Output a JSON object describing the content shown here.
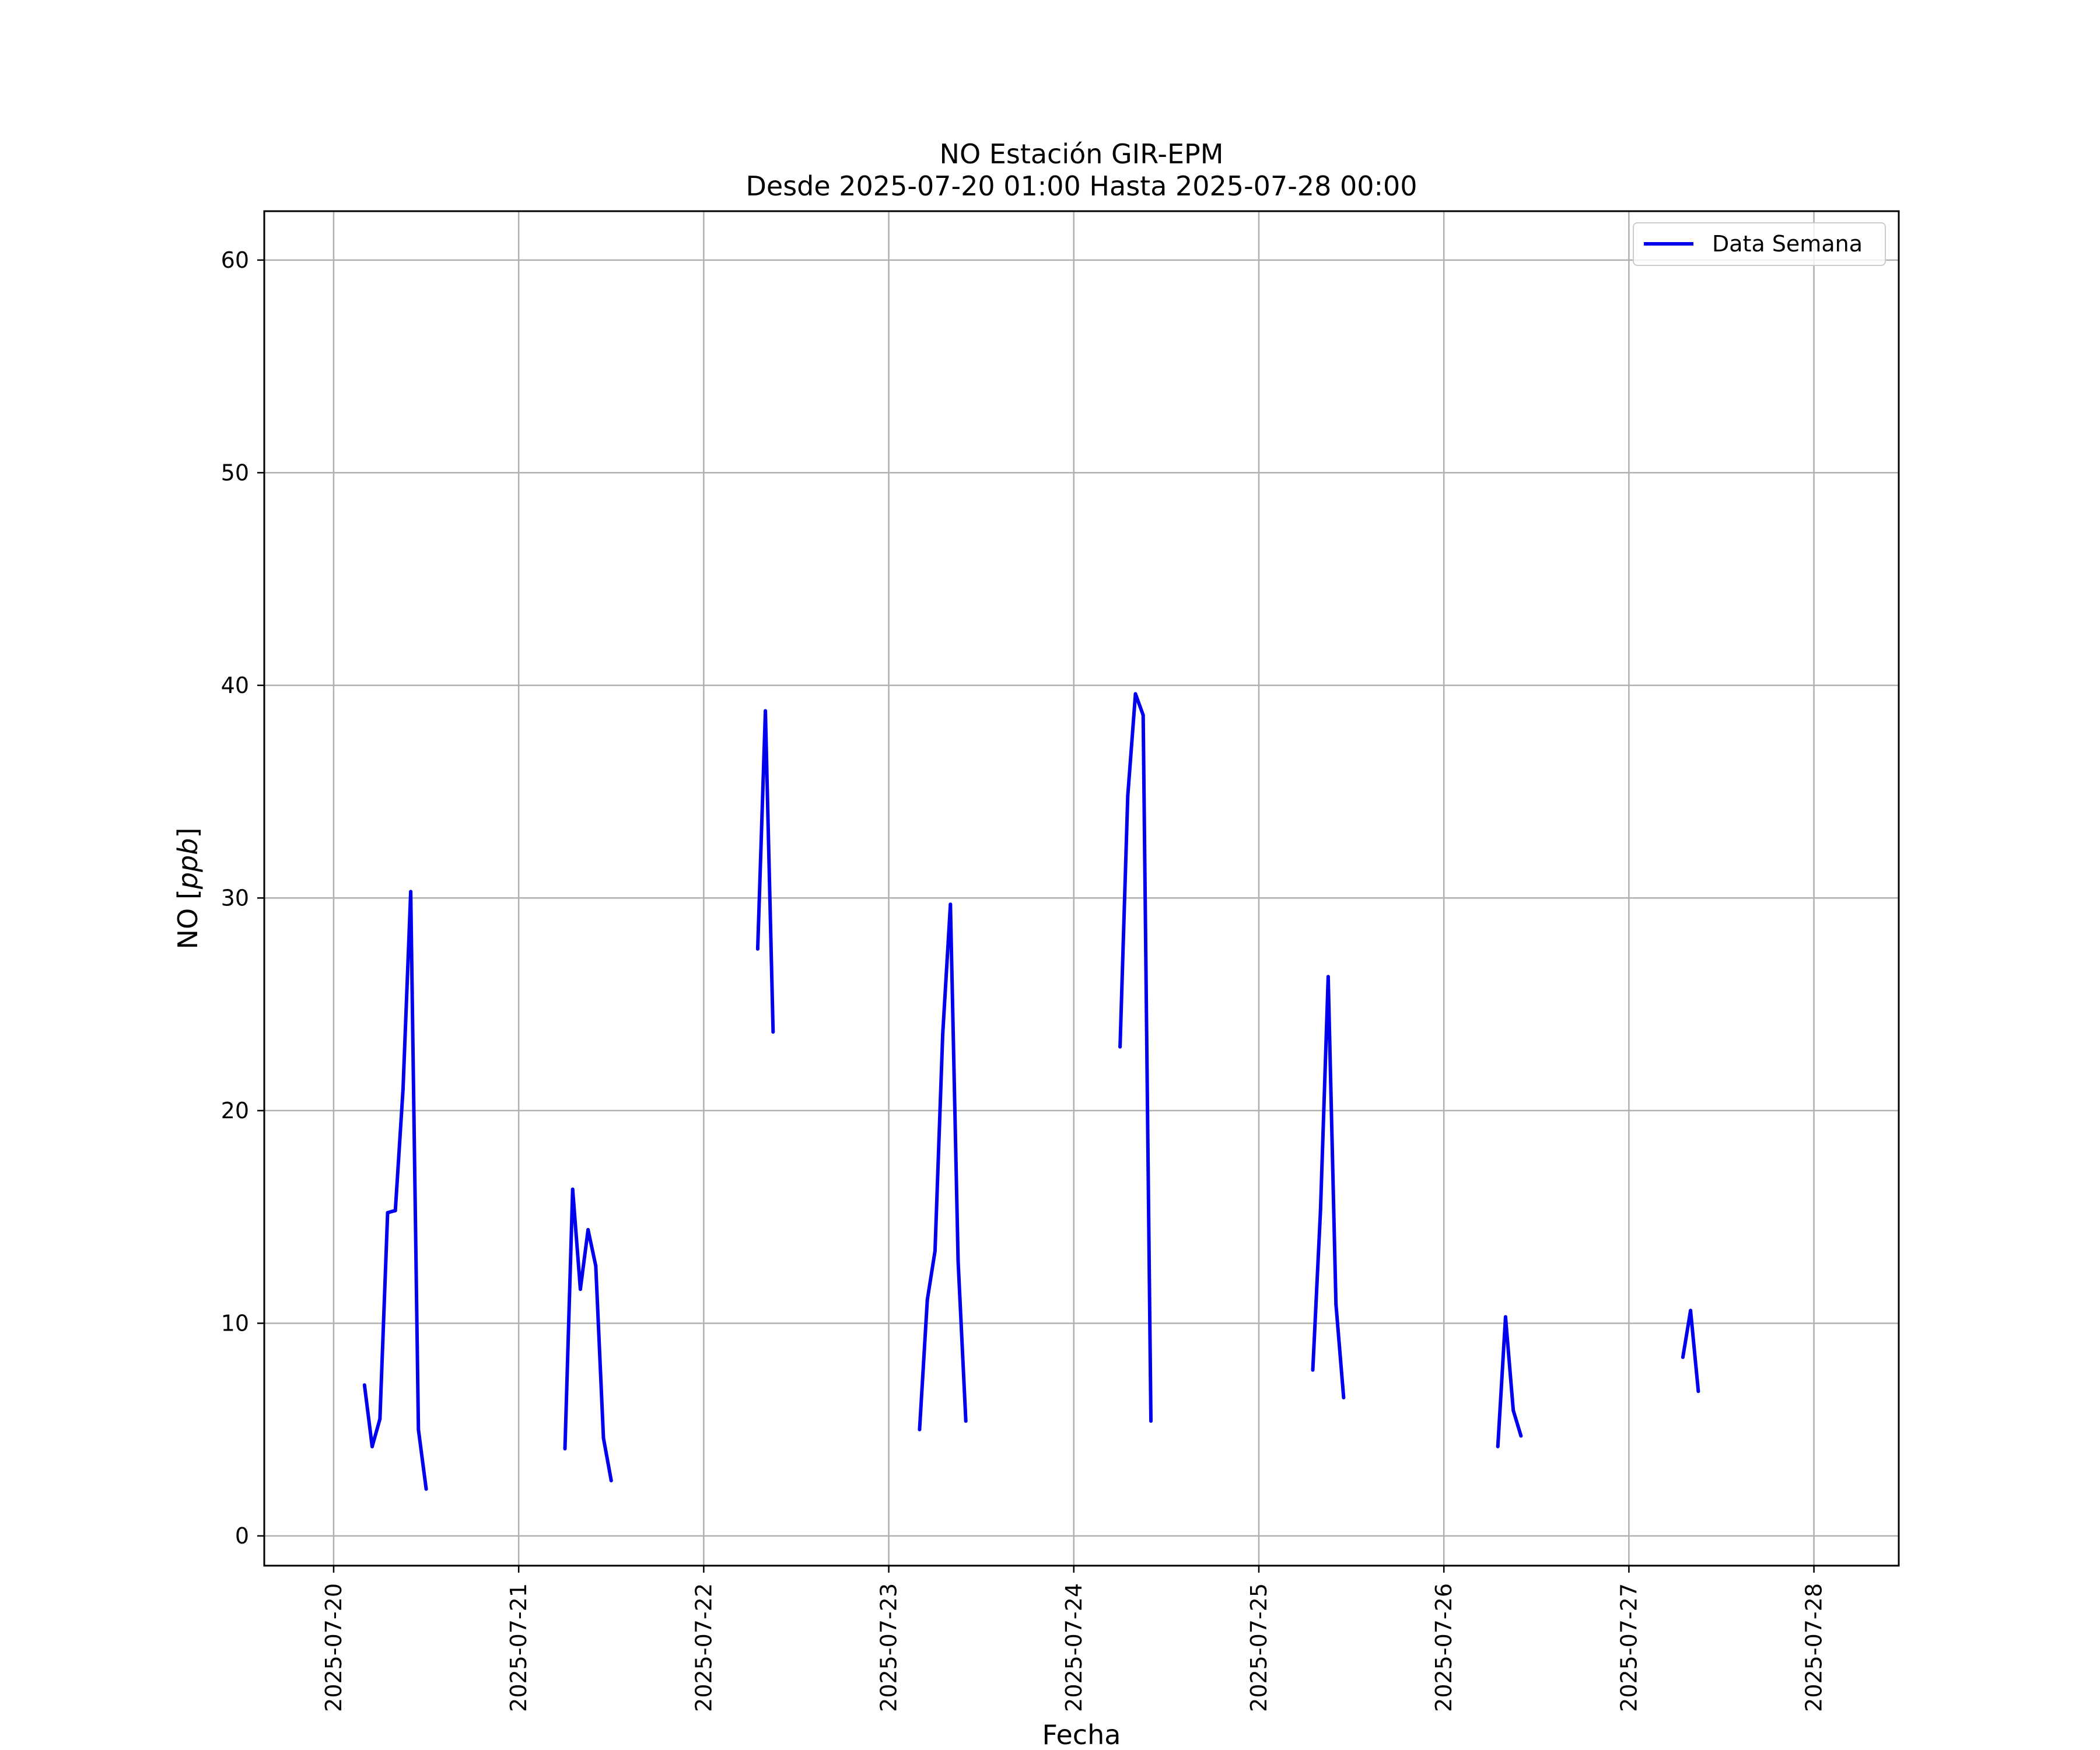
{
  "chart_data": {
    "type": "line",
    "title": [
      "NO Estación GIR-EPM",
      "Desde 2025-07-20 01:00 Hasta 2025-07-28 00:00"
    ],
    "xlabel": "Fecha",
    "ylabel_main": "NO [",
    "ylabel_unit": "ppb",
    "ylabel_close": "]",
    "xlim": [
      "2025-07-19T15:00",
      "2025-07-28T11:00"
    ],
    "ylim": [
      -1.4,
      62.3
    ],
    "xticks": [
      "2025-07-20",
      "2025-07-21",
      "2025-07-22",
      "2025-07-23",
      "2025-07-24",
      "2025-07-25",
      "2025-07-26",
      "2025-07-27",
      "2025-07-28"
    ],
    "yticks": [
      0,
      10,
      20,
      30,
      40,
      50,
      60
    ],
    "grid": true,
    "legend_position": "top-right",
    "colors": {
      "series": "#0000ee",
      "grid": "#b0b0b0"
    },
    "series": [
      {
        "name": "Data Semana",
        "segments": [
          [
            [
              "2025-07-20T04:00",
              7.1
            ],
            [
              "2025-07-20T05:00",
              4.2
            ],
            [
              "2025-07-20T06:00",
              5.5
            ],
            [
              "2025-07-20T07:00",
              15.2
            ],
            [
              "2025-07-20T08:00",
              15.3
            ],
            [
              "2025-07-20T09:00",
              21.0
            ],
            [
              "2025-07-20T10:00",
              30.3
            ],
            [
              "2025-07-20T11:00",
              5.0
            ],
            [
              "2025-07-20T12:00",
              2.2
            ]
          ],
          [
            [
              "2025-07-21T06:00",
              4.1
            ],
            [
              "2025-07-21T07:00",
              16.3
            ],
            [
              "2025-07-21T08:00",
              11.6
            ],
            [
              "2025-07-21T09:00",
              14.4
            ],
            [
              "2025-07-21T10:00",
              12.7
            ],
            [
              "2025-07-21T11:00",
              4.6
            ],
            [
              "2025-07-21T12:00",
              2.6
            ]
          ],
          [
            [
              "2025-07-22T07:00",
              27.6
            ],
            [
              "2025-07-22T08:00",
              38.8
            ],
            [
              "2025-07-22T09:00",
              23.7
            ]
          ],
          [
            [
              "2025-07-23T04:00",
              5.0
            ],
            [
              "2025-07-23T05:00",
              11.1
            ],
            [
              "2025-07-23T06:00",
              13.4
            ],
            [
              "2025-07-23T07:00",
              23.6
            ],
            [
              "2025-07-23T08:00",
              29.7
            ],
            [
              "2025-07-23T09:00",
              12.9
            ],
            [
              "2025-07-23T10:00",
              5.4
            ]
          ],
          [
            [
              "2025-07-24T06:00",
              23.0
            ],
            [
              "2025-07-24T07:00",
              34.8
            ],
            [
              "2025-07-24T08:00",
              39.6
            ],
            [
              "2025-07-24T09:00",
              38.6
            ],
            [
              "2025-07-24T10:00",
              5.4
            ]
          ],
          [
            [
              "2025-07-25T07:00",
              7.8
            ],
            [
              "2025-07-25T08:00",
              15.3
            ],
            [
              "2025-07-25T09:00",
              26.3
            ],
            [
              "2025-07-25T10:00",
              10.9
            ],
            [
              "2025-07-25T11:00",
              6.5
            ]
          ],
          [
            [
              "2025-07-26T07:00",
              4.2
            ],
            [
              "2025-07-26T08:00",
              10.3
            ],
            [
              "2025-07-26T09:00",
              5.9
            ],
            [
              "2025-07-26T10:00",
              4.7
            ]
          ],
          [
            [
              "2025-07-27T07:00",
              8.4
            ],
            [
              "2025-07-27T08:00",
              10.6
            ],
            [
              "2025-07-27T09:00",
              6.8
            ]
          ]
        ]
      }
    ]
  }
}
